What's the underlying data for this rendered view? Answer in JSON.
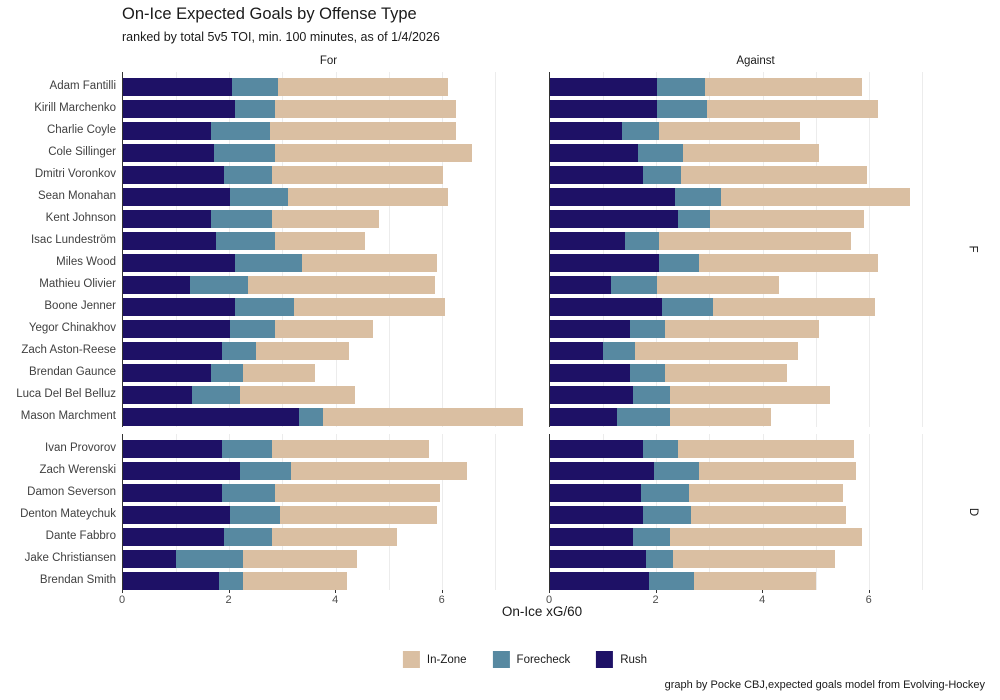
{
  "title": "On-Ice Expected Goals by Offense Type",
  "subtitle": "ranked by total 5v5 TOI, min. 100 minutes, as of 1/4/2026",
  "caption": "graph by Pocke CBJ,expected goals model from Evolving-Hockey",
  "axis": {
    "xlabel": "On-Ice xG/60",
    "ticks": [
      0,
      2,
      4,
      6
    ],
    "xmax": 7.75,
    "gridline_every": 1
  },
  "facets": {
    "columns": [
      "For",
      "Against"
    ],
    "rows": [
      "F",
      "D"
    ]
  },
  "colors": {
    "rush": "#1e1166",
    "forecheck": "#5789a1",
    "inzone": "#dabfa2",
    "gridline": "#ececec",
    "axis": "#333333"
  },
  "legend": [
    {
      "key": "inzone",
      "label": "In-Zone",
      "color": "#dabfa2"
    },
    {
      "key": "forecheck",
      "label": "Forecheck",
      "color": "#5789a1"
    },
    {
      "key": "rush",
      "label": "Rush",
      "color": "#1e1166"
    }
  ],
  "chart_data": {
    "type": "bar",
    "orientation": "horizontal",
    "stacked": true,
    "series_order": [
      "rush",
      "forecheck",
      "inzone"
    ],
    "facet_columns": [
      "For",
      "Against"
    ],
    "xlim": [
      0,
      7.75
    ],
    "grid": true,
    "legend_position": "bottom",
    "groups": [
      {
        "facet_row": "F",
        "players": [
          {
            "name": "Adam Fantilli",
            "for": {
              "rush": 2.05,
              "forecheck": 0.85,
              "inzone": 3.2
            },
            "against": {
              "rush": 2.0,
              "forecheck": 0.9,
              "inzone": 2.95
            }
          },
          {
            "name": "Kirill Marchenko",
            "for": {
              "rush": 2.1,
              "forecheck": 0.75,
              "inzone": 3.4
            },
            "against": {
              "rush": 2.0,
              "forecheck": 0.95,
              "inzone": 3.2
            }
          },
          {
            "name": "Charlie Coyle",
            "for": {
              "rush": 1.65,
              "forecheck": 1.1,
              "inzone": 3.5
            },
            "against": {
              "rush": 1.35,
              "forecheck": 0.7,
              "inzone": 2.65
            }
          },
          {
            "name": "Cole Sillinger",
            "for": {
              "rush": 1.7,
              "forecheck": 1.15,
              "inzone": 3.7
            },
            "against": {
              "rush": 1.65,
              "forecheck": 0.85,
              "inzone": 2.55
            }
          },
          {
            "name": "Dmitri Voronkov",
            "for": {
              "rush": 1.9,
              "forecheck": 0.9,
              "inzone": 3.2
            },
            "against": {
              "rush": 1.75,
              "forecheck": 0.7,
              "inzone": 3.5
            }
          },
          {
            "name": "Sean Monahan",
            "for": {
              "rush": 2.0,
              "forecheck": 1.1,
              "inzone": 3.0
            },
            "against": {
              "rush": 2.35,
              "forecheck": 0.85,
              "inzone": 3.55
            }
          },
          {
            "name": "Kent Johnson",
            "for": {
              "rush": 1.65,
              "forecheck": 1.15,
              "inzone": 2.0
            },
            "against": {
              "rush": 2.4,
              "forecheck": 0.6,
              "inzone": 2.9
            }
          },
          {
            "name": "Isac Lundeström",
            "for": {
              "rush": 1.75,
              "forecheck": 1.1,
              "inzone": 1.7
            },
            "against": {
              "rush": 1.4,
              "forecheck": 0.65,
              "inzone": 3.6
            }
          },
          {
            "name": "Miles Wood",
            "for": {
              "rush": 2.1,
              "forecheck": 1.25,
              "inzone": 2.55
            },
            "against": {
              "rush": 2.05,
              "forecheck": 0.75,
              "inzone": 3.35
            }
          },
          {
            "name": "Mathieu Olivier",
            "for": {
              "rush": 1.25,
              "forecheck": 1.1,
              "inzone": 3.5
            },
            "against": {
              "rush": 1.15,
              "forecheck": 0.85,
              "inzone": 2.3
            }
          },
          {
            "name": "Boone Jenner",
            "for": {
              "rush": 2.1,
              "forecheck": 1.1,
              "inzone": 2.85
            },
            "against": {
              "rush": 2.1,
              "forecheck": 0.95,
              "inzone": 3.05
            }
          },
          {
            "name": "Yegor Chinakhov",
            "for": {
              "rush": 2.0,
              "forecheck": 0.85,
              "inzone": 1.85
            },
            "against": {
              "rush": 1.5,
              "forecheck": 0.65,
              "inzone": 2.9
            }
          },
          {
            "name": "Zach Aston-Reese",
            "for": {
              "rush": 1.85,
              "forecheck": 0.65,
              "inzone": 1.75
            },
            "against": {
              "rush": 1.0,
              "forecheck": 0.6,
              "inzone": 3.05
            }
          },
          {
            "name": "Brendan Gaunce",
            "for": {
              "rush": 1.65,
              "forecheck": 0.6,
              "inzone": 1.35
            },
            "against": {
              "rush": 1.5,
              "forecheck": 0.65,
              "inzone": 2.3
            }
          },
          {
            "name": "Luca Del Bel Belluz",
            "for": {
              "rush": 1.3,
              "forecheck": 0.9,
              "inzone": 2.15
            },
            "against": {
              "rush": 1.55,
              "forecheck": 0.7,
              "inzone": 3.0
            }
          },
          {
            "name": "Mason Marchment",
            "for": {
              "rush": 3.3,
              "forecheck": 0.45,
              "inzone": 3.75
            },
            "against": {
              "rush": 1.25,
              "forecheck": 1.0,
              "inzone": 1.9
            }
          }
        ]
      },
      {
        "facet_row": "D",
        "players": [
          {
            "name": "Ivan Provorov",
            "for": {
              "rush": 1.85,
              "forecheck": 0.95,
              "inzone": 2.95
            },
            "against": {
              "rush": 1.75,
              "forecheck": 0.65,
              "inzone": 3.3
            }
          },
          {
            "name": "Zach Werenski",
            "for": {
              "rush": 2.2,
              "forecheck": 0.95,
              "inzone": 3.3
            },
            "against": {
              "rush": 1.95,
              "forecheck": 0.85,
              "inzone": 2.95
            }
          },
          {
            "name": "Damon Severson",
            "for": {
              "rush": 1.85,
              "forecheck": 1.0,
              "inzone": 3.1
            },
            "against": {
              "rush": 1.7,
              "forecheck": 0.9,
              "inzone": 2.9
            }
          },
          {
            "name": "Denton Mateychuk",
            "for": {
              "rush": 2.0,
              "forecheck": 0.95,
              "inzone": 2.95
            },
            "against": {
              "rush": 1.75,
              "forecheck": 0.9,
              "inzone": 2.9
            }
          },
          {
            "name": "Dante Fabbro",
            "for": {
              "rush": 1.9,
              "forecheck": 0.9,
              "inzone": 2.35
            },
            "against": {
              "rush": 1.55,
              "forecheck": 0.7,
              "inzone": 3.6
            }
          },
          {
            "name": "Jake Christiansen",
            "for": {
              "rush": 1.0,
              "forecheck": 1.25,
              "inzone": 2.15
            },
            "against": {
              "rush": 1.8,
              "forecheck": 0.5,
              "inzone": 3.05
            }
          },
          {
            "name": "Brendan Smith",
            "for": {
              "rush": 1.8,
              "forecheck": 0.45,
              "inzone": 1.95
            },
            "against": {
              "rush": 1.85,
              "forecheck": 0.85,
              "inzone": 2.3
            }
          }
        ]
      }
    ]
  }
}
